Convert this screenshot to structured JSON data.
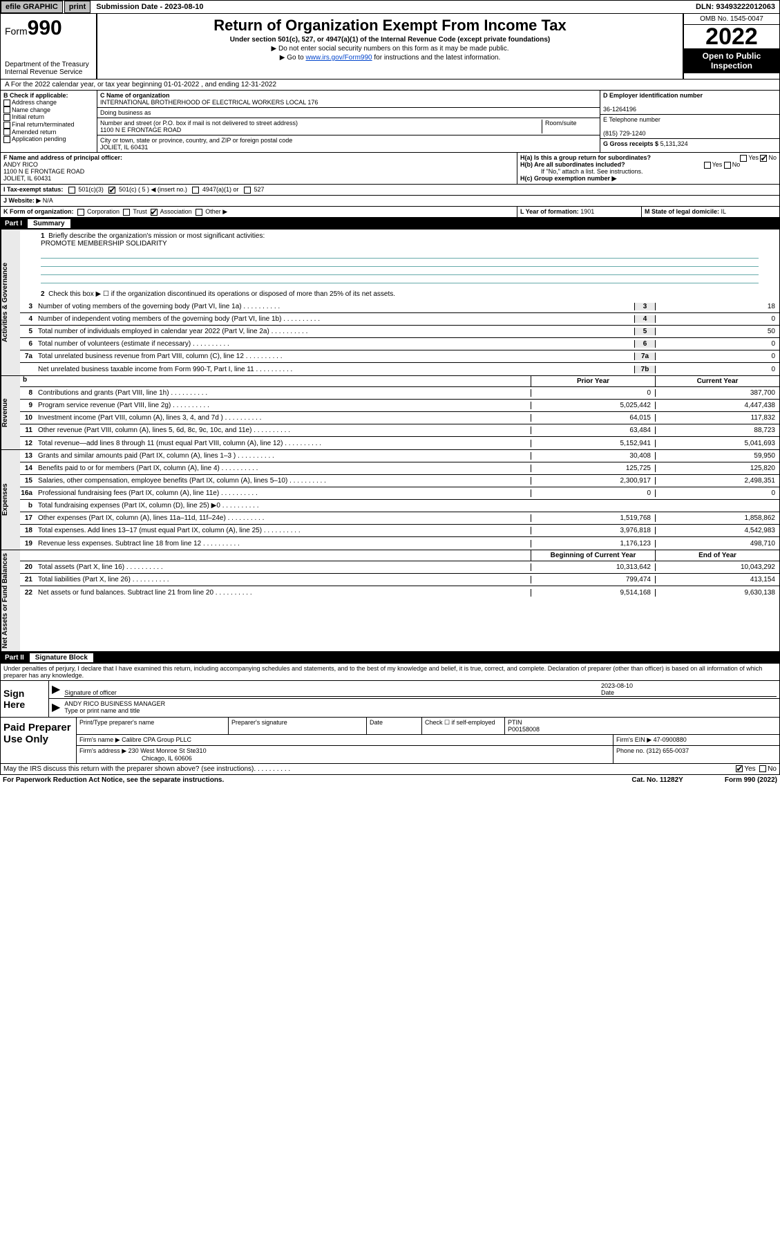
{
  "topbar": {
    "efile": "efile GRAPHIC",
    "print": "print",
    "sub_date_label": "Submission Date - 2023-08-10",
    "dln_label": "DLN: 93493222012063"
  },
  "header": {
    "form_label": "Form",
    "form_num": "990",
    "dept": "Department of the Treasury",
    "irs": "Internal Revenue Service",
    "title": "Return of Organization Exempt From Income Tax",
    "sub1": "Under section 501(c), 527, or 4947(a)(1) of the Internal Revenue Code (except private foundations)",
    "sub2": "▶ Do not enter social security numbers on this form as it may be made public.",
    "sub3_pre": "▶ Go to ",
    "sub3_link": "www.irs.gov/Form990",
    "sub3_post": " for instructions and the latest information.",
    "omb": "OMB No. 1545-0047",
    "year": "2022",
    "open": "Open to Public Inspection"
  },
  "section_a": {
    "text": "A For the 2022 calendar year, or tax year beginning 01-01-2022   , and ending 12-31-2022"
  },
  "section_b": {
    "label": "B Check if applicable:",
    "items": [
      "Address change",
      "Name change",
      "Initial return",
      "Final return/terminated",
      "Amended return",
      "Application pending"
    ]
  },
  "section_c": {
    "name_label": "C Name of organization",
    "org_name": "INTERNATIONAL BROTHERHOOD OF ELECTRICAL WORKERS LOCAL 176",
    "dba_label": "Doing business as",
    "addr_label": "Number and street (or P.O. box if mail is not delivered to street address)",
    "room_label": "Room/suite",
    "addr": "1100 N E FRONTAGE ROAD",
    "city_label": "City or town, state or province, country, and ZIP or foreign postal code",
    "city": "JOLIET, IL  60431"
  },
  "section_d": {
    "label": "D Employer identification number",
    "value": "36-1264196"
  },
  "section_e": {
    "label": "E Telephone number",
    "value": "(815) 729-1240"
  },
  "section_g": {
    "label": "G Gross receipts $",
    "value": "5,131,324"
  },
  "section_f": {
    "label": "F Name and address of principal officer:",
    "name": "ANDY RICO",
    "addr1": "1100 N E FRONTAGE ROAD",
    "addr2": "JOLIET, IL  60431"
  },
  "section_h": {
    "ha": "H(a)  Is this a group return for subordinates?",
    "hb": "H(b)  Are all subordinates included?",
    "hb_note": "If \"No,\" attach a list. See instructions.",
    "hc": "H(c)  Group exemption number ▶",
    "yes": "Yes",
    "no": "No"
  },
  "section_i": {
    "label": "I   Tax-exempt status:",
    "c3": "501(c)(3)",
    "c5": "501(c) ( 5 ) ◀ (insert no.)",
    "a1": "4947(a)(1) or",
    "s527": "527"
  },
  "section_j": {
    "label": "J   Website: ▶",
    "value": "N/A"
  },
  "section_k": {
    "label": "K Form of organization:",
    "corp": "Corporation",
    "trust": "Trust",
    "assoc": "Association",
    "other": "Other ▶"
  },
  "section_l": {
    "label": "L Year of formation:",
    "value": "1901"
  },
  "section_m": {
    "label": "M State of legal domicile:",
    "value": "IL"
  },
  "part1": {
    "label": "Part I",
    "title": "Summary",
    "line1_label": "Briefly describe the organization's mission or most significant activities:",
    "line1_val": "PROMOTE MEMBERSHIP SOLIDARITY",
    "line2": "Check this box ▶  ☐  if the organization discontinued its operations or disposed of more than 25% of its net assets.",
    "tabs": {
      "gov": "Activities & Governance",
      "rev": "Revenue",
      "exp": "Expenses",
      "net": "Net Assets or Fund Balances"
    },
    "gov_lines": [
      {
        "n": "3",
        "t": "Number of voting members of the governing body (Part VI, line 1a)",
        "k": "3",
        "v": "18"
      },
      {
        "n": "4",
        "t": "Number of independent voting members of the governing body (Part VI, line 1b)",
        "k": "4",
        "v": "0"
      },
      {
        "n": "5",
        "t": "Total number of individuals employed in calendar year 2022 (Part V, line 2a)",
        "k": "5",
        "v": "50"
      },
      {
        "n": "6",
        "t": "Total number of volunteers (estimate if necessary)",
        "k": "6",
        "v": "0"
      },
      {
        "n": "7a",
        "t": "Total unrelated business revenue from Part VIII, column (C), line 12",
        "k": "7a",
        "v": "0"
      },
      {
        "n": "",
        "t": "Net unrelated business taxable income from Form 990-T, Part I, line 11",
        "k": "7b",
        "v": "0"
      }
    ],
    "hdr_b": "b",
    "hdr_prior": "Prior Year",
    "hdr_curr": "Current Year",
    "rev_lines": [
      {
        "n": "8",
        "t": "Contributions and grants (Part VIII, line 1h)",
        "p": "0",
        "c": "387,700"
      },
      {
        "n": "9",
        "t": "Program service revenue (Part VIII, line 2g)",
        "p": "5,025,442",
        "c": "4,447,438"
      },
      {
        "n": "10",
        "t": "Investment income (Part VIII, column (A), lines 3, 4, and 7d )",
        "p": "64,015",
        "c": "117,832"
      },
      {
        "n": "11",
        "t": "Other revenue (Part VIII, column (A), lines 5, 6d, 8c, 9c, 10c, and 11e)",
        "p": "63,484",
        "c": "88,723"
      },
      {
        "n": "12",
        "t": "Total revenue—add lines 8 through 11 (must equal Part VIII, column (A), line 12)",
        "p": "5,152,941",
        "c": "5,041,693"
      }
    ],
    "exp_lines": [
      {
        "n": "13",
        "t": "Grants and similar amounts paid (Part IX, column (A), lines 1–3 )",
        "p": "30,408",
        "c": "59,950"
      },
      {
        "n": "14",
        "t": "Benefits paid to or for members (Part IX, column (A), line 4)",
        "p": "125,725",
        "c": "125,820"
      },
      {
        "n": "15",
        "t": "Salaries, other compensation, employee benefits (Part IX, column (A), lines 5–10)",
        "p": "2,300,917",
        "c": "2,498,351"
      },
      {
        "n": "16a",
        "t": "Professional fundraising fees (Part IX, column (A), line 11e)",
        "p": "0",
        "c": "0"
      },
      {
        "n": "b",
        "t": "Total fundraising expenses (Part IX, column (D), line 25) ▶0",
        "p": "",
        "c": "",
        "blank": true
      },
      {
        "n": "17",
        "t": "Other expenses (Part IX, column (A), lines 11a–11d, 11f–24e)",
        "p": "1,519,768",
        "c": "1,858,862"
      },
      {
        "n": "18",
        "t": "Total expenses. Add lines 13–17 (must equal Part IX, column (A), line 25)",
        "p": "3,976,818",
        "c": "4,542,983"
      },
      {
        "n": "19",
        "t": "Revenue less expenses. Subtract line 18 from line 12",
        "p": "1,176,123",
        "c": "498,710"
      }
    ],
    "hdr_beg": "Beginning of Current Year",
    "hdr_end": "End of Year",
    "net_lines": [
      {
        "n": "20",
        "t": "Total assets (Part X, line 16)",
        "p": "10,313,642",
        "c": "10,043,292"
      },
      {
        "n": "21",
        "t": "Total liabilities (Part X, line 26)",
        "p": "799,474",
        "c": "413,154"
      },
      {
        "n": "22",
        "t": "Net assets or fund balances. Subtract line 21 from line 20",
        "p": "9,514,168",
        "c": "9,630,138"
      }
    ]
  },
  "part2": {
    "label": "Part II",
    "title": "Signature Block",
    "declaration": "Under penalties of perjury, I declare that I have examined this return, including accompanying schedules and statements, and to the best of my knowledge and belief, it is true, correct, and complete. Declaration of preparer (other than officer) is based on all information of which preparer has any knowledge.",
    "sign_here": "Sign Here",
    "sig_officer": "Signature of officer",
    "sig_date": "2023-08-10",
    "date_label": "Date",
    "officer_name": "ANDY RICO  BUSINESS MANAGER",
    "type_name": "Type or print name and title",
    "paid": "Paid Preparer Use Only",
    "prep_name_label": "Print/Type preparer's name",
    "prep_sig_label": "Preparer's signature",
    "prep_date_label": "Date",
    "check_self": "Check ☐ if self-employed",
    "ptin_label": "PTIN",
    "ptin": "P00158008",
    "firm_name_label": "Firm's name    ▶",
    "firm_name": "Calibre CPA Group PLLC",
    "firm_ein_label": "Firm's EIN ▶",
    "firm_ein": "47-0900880",
    "firm_addr_label": "Firm's address ▶",
    "firm_addr1": "230 West Monroe St Ste310",
    "firm_addr2": "Chicago, IL  60606",
    "phone_label": "Phone no.",
    "phone": "(312) 655-0037",
    "discuss": "May the IRS discuss this return with the preparer shown above? (see instructions)",
    "yes": "Yes",
    "no": "No"
  },
  "footer": {
    "paperwork": "For Paperwork Reduction Act Notice, see the separate instructions.",
    "cat": "Cat. No. 11282Y",
    "form": "Form 990 (2022)"
  }
}
